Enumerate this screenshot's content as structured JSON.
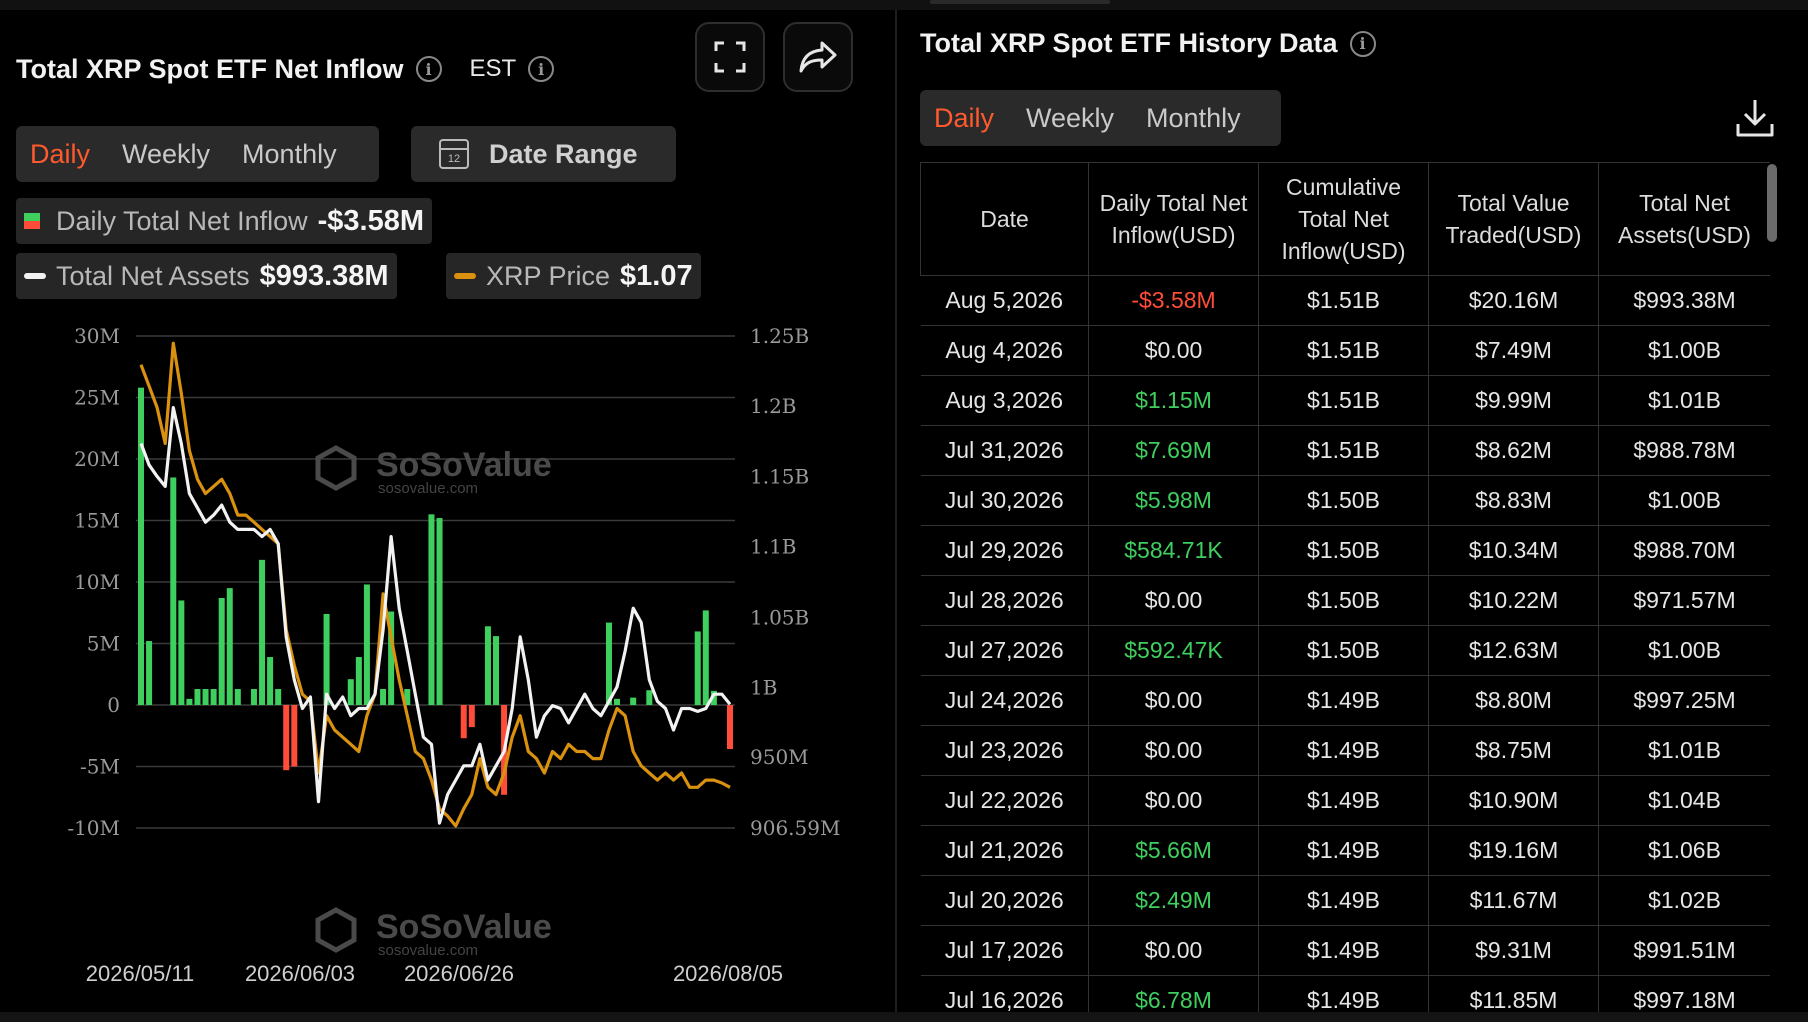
{
  "left_panel": {
    "title": "Total XRP Spot ETF Net Inflow",
    "timezone": "EST",
    "tabs": [
      {
        "label": "Daily",
        "active": true
      },
      {
        "label": "Weekly",
        "active": false
      },
      {
        "label": "Monthly",
        "active": false
      }
    ],
    "date_range_label": "Date Range",
    "calendar_day": "12",
    "legend": {
      "inflow_label": "Daily Total Net Inflow",
      "inflow_value": "-$3.58M",
      "assets_label": "Total Net Assets",
      "assets_value": "$993.38M",
      "price_label": "XRP Price",
      "price_value": "$1.07"
    },
    "watermark": {
      "name": "SoSoValue",
      "site": "sosovalue.com"
    }
  },
  "chart_data": {
    "type": "bar",
    "left_axis": {
      "ticks": [
        "30M",
        "25M",
        "20M",
        "15M",
        "10M",
        "5M",
        "0",
        "-5M",
        "-10M"
      ],
      "range": [
        -10,
        30
      ]
    },
    "right_axis": {
      "ticks": [
        "1.25B",
        "1.2B",
        "1.15B",
        "1.1B",
        "1.05B",
        "1B",
        "950M",
        "906.59M"
      ],
      "range": [
        0.90659,
        1.25
      ]
    },
    "x_tick_labels": [
      "2026/05/11",
      "2026/06/03",
      "2026/06/26",
      "2026/08/05"
    ],
    "grid": true,
    "bar_series": {
      "name": "Daily Total Net Inflow",
      "values": [
        25.8,
        5.2,
        0,
        0,
        18.5,
        8.5,
        0.5,
        1.3,
        1.3,
        1.3,
        8.7,
        9.5,
        1.3,
        0,
        1.3,
        11.8,
        3.9,
        1.3,
        -5.3,
        -5.0,
        0,
        0,
        0,
        7.4,
        0,
        0,
        2.1,
        3.9,
        9.8,
        0,
        1.3,
        7.6,
        0,
        1.3,
        0,
        0,
        15.5,
        15.2,
        0,
        0,
        -2.7,
        -1.8,
        0,
        6.4,
        5.6,
        -7.3,
        0,
        0,
        0,
        0,
        0,
        0,
        0,
        0,
        0,
        0,
        0,
        0,
        6.7,
        0.5,
        0,
        0.6,
        0,
        1.2,
        0,
        0,
        0,
        0,
        0,
        5.98,
        7.69,
        1.15,
        0,
        -3.58
      ]
    },
    "line_series": [
      {
        "name": "Total Net Assets",
        "color": "#f2f2f2",
        "values_b": [
          1.175,
          1.16,
          1.152,
          1.145,
          1.2,
          1.175,
          1.14,
          1.13,
          1.12,
          1.125,
          1.132,
          1.12,
          1.115,
          1.115,
          1.115,
          1.11,
          1.115,
          1.105,
          1.04,
          1.01,
          0.99,
          0.998,
          0.925,
          1.0,
          0.99,
          0.998,
          0.985,
          0.99,
          0.99,
          1.0,
          1.045,
          1.11,
          1.06,
          1.03,
          1.0,
          0.97,
          0.965,
          0.91,
          0.93,
          0.94,
          0.95,
          0.95,
          0.965,
          0.94,
          0.95,
          0.96,
          0.99,
          1.04,
          1.01,
          0.97,
          0.985,
          0.992,
          0.99,
          0.98,
          0.99,
          1.0,
          0.99,
          0.985,
          0.995,
          1.005,
          1.03,
          1.06,
          1.05,
          1.01,
          0.995,
          0.99,
          0.975,
          0.99,
          0.99,
          0.988,
          0.99,
          1.0,
          1.0,
          0.993
        ]
      },
      {
        "name": "XRP Price",
        "color": "#d9910f",
        "values_b": [
          1.23,
          1.215,
          1.2,
          1.175,
          1.245,
          1.21,
          1.17,
          1.15,
          1.14,
          1.145,
          1.15,
          1.14,
          1.125,
          1.125,
          1.12,
          1.115,
          1.11,
          1.105,
          1.045,
          1.02,
          1.0,
          0.995,
          0.945,
          0.985,
          0.975,
          0.97,
          0.965,
          0.96,
          0.985,
          1.0,
          1.07,
          1.04,
          1.01,
          0.985,
          0.96,
          0.955,
          0.94,
          0.92,
          0.915,
          0.908,
          0.92,
          0.93,
          0.955,
          0.935,
          0.93,
          0.945,
          0.97,
          0.985,
          0.96,
          0.955,
          0.945,
          0.96,
          0.955,
          0.965,
          0.96,
          0.96,
          0.955,
          0.955,
          0.975,
          0.99,
          0.985,
          0.96,
          0.95,
          0.945,
          0.94,
          0.945,
          0.94,
          0.945,
          0.935,
          0.935,
          0.94,
          0.94,
          0.938,
          0.935
        ]
      }
    ]
  },
  "right_panel": {
    "title": "Total XRP Spot ETF History Data",
    "tabs": [
      {
        "label": "Daily",
        "active": true
      },
      {
        "label": "Weekly",
        "active": false
      },
      {
        "label": "Monthly",
        "active": false
      }
    ],
    "columns": [
      "Date",
      "Daily Total Net Inflow(USD)",
      "Cumulative Total Net Inflow(USD)",
      "Total Value Traded(USD)",
      "Total Net Assets(USD)"
    ],
    "rows": [
      {
        "date": "Aug 5,2026",
        "inflow": "-$3.58M",
        "sign": "neg",
        "cumulative": "$1.51B",
        "traded": "$20.16M",
        "assets": "$993.38M"
      },
      {
        "date": "Aug 4,2026",
        "inflow": "$0.00",
        "sign": "zero",
        "cumulative": "$1.51B",
        "traded": "$7.49M",
        "assets": "$1.00B"
      },
      {
        "date": "Aug 3,2026",
        "inflow": "$1.15M",
        "sign": "pos",
        "cumulative": "$1.51B",
        "traded": "$9.99M",
        "assets": "$1.01B"
      },
      {
        "date": "Jul 31,2026",
        "inflow": "$7.69M",
        "sign": "pos",
        "cumulative": "$1.51B",
        "traded": "$8.62M",
        "assets": "$988.78M"
      },
      {
        "date": "Jul 30,2026",
        "inflow": "$5.98M",
        "sign": "pos",
        "cumulative": "$1.50B",
        "traded": "$8.83M",
        "assets": "$1.00B"
      },
      {
        "date": "Jul 29,2026",
        "inflow": "$584.71K",
        "sign": "pos",
        "cumulative": "$1.50B",
        "traded": "$10.34M",
        "assets": "$988.70M"
      },
      {
        "date": "Jul 28,2026",
        "inflow": "$0.00",
        "sign": "zero",
        "cumulative": "$1.50B",
        "traded": "$10.22M",
        "assets": "$971.57M"
      },
      {
        "date": "Jul 27,2026",
        "inflow": "$592.47K",
        "sign": "pos",
        "cumulative": "$1.50B",
        "traded": "$12.63M",
        "assets": "$1.00B"
      },
      {
        "date": "Jul 24,2026",
        "inflow": "$0.00",
        "sign": "zero",
        "cumulative": "$1.49B",
        "traded": "$8.80M",
        "assets": "$997.25M"
      },
      {
        "date": "Jul 23,2026",
        "inflow": "$0.00",
        "sign": "zero",
        "cumulative": "$1.49B",
        "traded": "$8.75M",
        "assets": "$1.01B"
      },
      {
        "date": "Jul 22,2026",
        "inflow": "$0.00",
        "sign": "zero",
        "cumulative": "$1.49B",
        "traded": "$10.90M",
        "assets": "$1.04B"
      },
      {
        "date": "Jul 21,2026",
        "inflow": "$5.66M",
        "sign": "pos",
        "cumulative": "$1.49B",
        "traded": "$19.16M",
        "assets": "$1.06B"
      },
      {
        "date": "Jul 20,2026",
        "inflow": "$2.49M",
        "sign": "pos",
        "cumulative": "$1.49B",
        "traded": "$11.67M",
        "assets": "$1.02B"
      },
      {
        "date": "Jul 17,2026",
        "inflow": "$0.00",
        "sign": "zero",
        "cumulative": "$1.49B",
        "traded": "$9.31M",
        "assets": "$991.51M"
      },
      {
        "date": "Jul 16,2026",
        "inflow": "$6.78M",
        "sign": "pos",
        "cumulative": "$1.49B",
        "traded": "$11.85M",
        "assets": "$997.18M"
      }
    ]
  },
  "colors": {
    "positive": "#3fcf5f",
    "negative": "#ff4d3a",
    "accent": "#ff5a2e",
    "price_line": "#d9910f",
    "assets_line": "#f2f2f2"
  }
}
